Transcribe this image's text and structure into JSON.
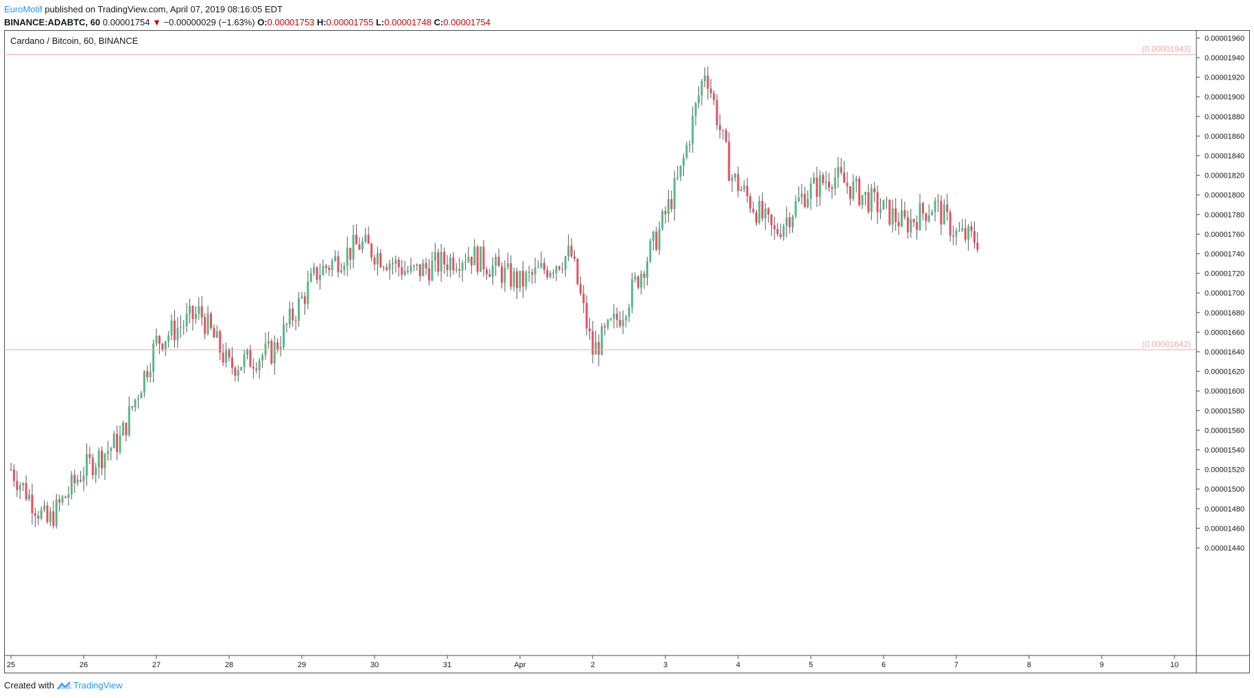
{
  "header": {
    "author": "EuroMotif",
    "published_text": "published on TradingView.com, April 07, 2019 08:16:05 EDT",
    "symbol": "BINANCE:ADABTC, 60",
    "last": "0.00001754",
    "change_arrow": "▼",
    "change": "−0.00000029 (−1.63%)",
    "open_label": "O:",
    "open": "0.00001753",
    "high_label": "H:",
    "high": "0.00001755",
    "low_label": "L:",
    "low": "0.00001748",
    "close_label": "C:",
    "close": "0.00001754"
  },
  "pane_title": "Cardano / Bitcoin, 60, BINANCE",
  "footer": {
    "created_with": "Created with",
    "brand": "TradingView"
  },
  "colors": {
    "up": "#53b987",
    "down": "#eb4d5c",
    "hline": "#f0a6a6",
    "brand": "#2196f3"
  },
  "chart_data": {
    "type": "candlestick",
    "title": "Cardano / Bitcoin, 60, BINANCE",
    "y_ticks": [
      "0.00001960",
      "0.00001940",
      "0.00001920",
      "0.00001900",
      "0.00001880",
      "0.00001860",
      "0.00001840",
      "0.00001820",
      "0.00001800",
      "0.00001780",
      "0.00001760",
      "0.00001740",
      "0.00001720",
      "0.00001700",
      "0.00001680",
      "0.00001660",
      "0.00001640",
      "0.00001620",
      "0.00001600",
      "0.00001580",
      "0.00001560",
      "0.00001540",
      "0.00001520",
      "0.00001500",
      "0.00001480",
      "0.00001460",
      "0.00001440"
    ],
    "x_ticks": [
      "25",
      "26",
      "27",
      "28",
      "29",
      "30",
      "31",
      "Apr",
      "2",
      "3",
      "4",
      "5",
      "6",
      "7",
      "8",
      "9",
      "10"
    ],
    "horizontal_lines": [
      {
        "label": "(0.00001943)",
        "value": 1.943e-05
      },
      {
        "label": "(0.00001642)",
        "value": 1.642e-05
      }
    ],
    "ohlc_keypoints": [
      {
        "day": 0.0,
        "close": 1.52e-05
      },
      {
        "day": 0.5,
        "close": 1.465e-05
      },
      {
        "day": 1.0,
        "close": 1.52e-05
      },
      {
        "day": 1.5,
        "close": 1.55e-05
      },
      {
        "day": 2.0,
        "close": 1.65e-05
      },
      {
        "day": 2.6,
        "close": 1.68e-05
      },
      {
        "day": 3.0,
        "close": 1.625e-05
      },
      {
        "day": 3.6,
        "close": 1.64e-05
      },
      {
        "day": 4.2,
        "close": 1.72e-05
      },
      {
        "day": 4.8,
        "close": 1.75e-05
      },
      {
        "day": 5.5,
        "close": 1.72e-05
      },
      {
        "day": 6.3,
        "close": 1.74e-05
      },
      {
        "day": 7.0,
        "close": 1.71e-05
      },
      {
        "day": 7.7,
        "close": 1.74e-05
      },
      {
        "day": 8.0,
        "close": 1.64e-05
      },
      {
        "day": 8.4,
        "close": 1.68e-05
      },
      {
        "day": 8.9,
        "close": 1.76e-05
      },
      {
        "day": 9.2,
        "close": 1.82e-05
      },
      {
        "day": 9.55,
        "close": 1.93e-05
      },
      {
        "day": 9.9,
        "close": 1.82e-05
      },
      {
        "day": 10.5,
        "close": 1.76e-05
      },
      {
        "day": 10.9,
        "close": 1.8e-05
      },
      {
        "day": 11.3,
        "close": 1.82e-05
      },
      {
        "day": 11.8,
        "close": 1.795e-05
      },
      {
        "day": 12.3,
        "close": 1.77e-05
      },
      {
        "day": 12.7,
        "close": 1.79e-05
      },
      {
        "day": 13.0,
        "close": 1.76e-05
      },
      {
        "day": 13.3,
        "close": 1.754e-05
      }
    ]
  }
}
